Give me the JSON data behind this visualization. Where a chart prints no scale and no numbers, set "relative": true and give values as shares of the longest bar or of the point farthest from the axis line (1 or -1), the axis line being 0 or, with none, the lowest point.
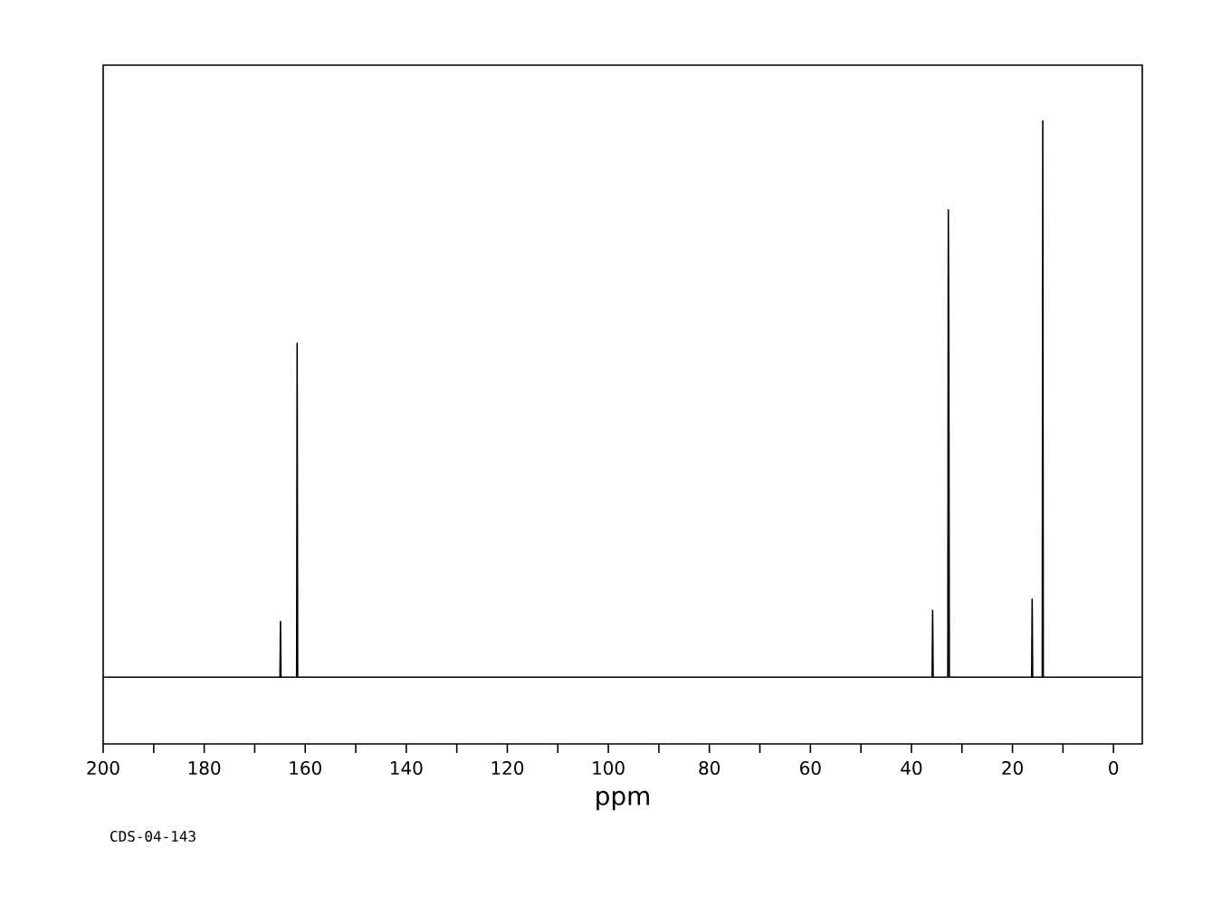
{
  "chart_data": {
    "type": "line",
    "relative": true,
    "xlabel": "ppm",
    "annotations": [
      "CDS-04-143"
    ],
    "x": [
      200,
      165.0,
      164.9,
      164.8,
      161.7,
      161.6,
      161.5,
      35.9,
      35.8,
      35.7,
      32.8,
      32.7,
      32.6,
      32.5,
      32.4,
      16.2,
      16.1,
      16.0,
      14.1,
      14.0,
      13.9,
      -5.7
    ],
    "series": [
      {
        "color": "#000000",
        "values": [
          0,
          0,
          0.1,
          0,
          0,
          0.6,
          0,
          0,
          0.12,
          0,
          0,
          0.84,
          0.58,
          0,
          0,
          0,
          0.14,
          0,
          0,
          1,
          0,
          0
        ]
      }
    ],
    "xlim": [
      200,
      -5.7
    ],
    "xticks": [
      200,
      180,
      160,
      140,
      120,
      100,
      80,
      60,
      40,
      20,
      0
    ],
    "tick_labels": "x",
    "grid": false,
    "marker": "none",
    "line_style": "solid"
  }
}
